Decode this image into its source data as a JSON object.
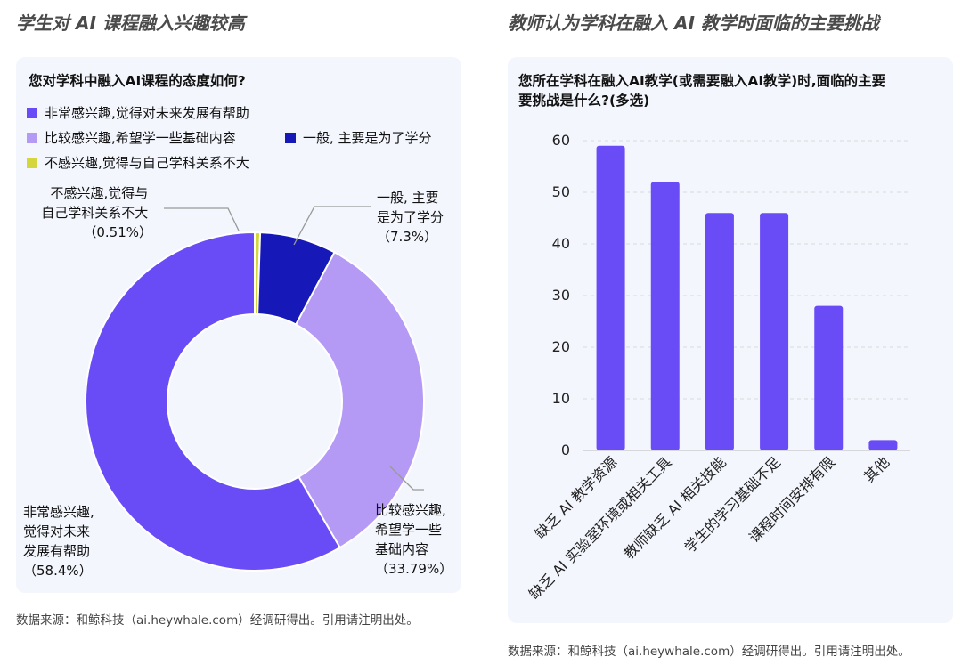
{
  "left": {
    "section_title": "学生对 AI 课程融入兴趣较高",
    "question": "您对学科中融入AI课程的态度如何?",
    "source": "数据来源：和鲸科技（ai.heywhale.com）经调研得出。引用请注明出处。"
  },
  "right": {
    "section_title": "教师认为学科在融入 AI 教学时面临的主要挑战",
    "question_line1": "您所在学科在融入AI教学(或需要融入AI教学)时,面临的主要",
    "question_line2": "要挑战是什么?(多选)",
    "source": "数据来源：和鲸科技（ai.heywhale.com）经调研得出。引用请注明出处。"
  },
  "chart_data": [
    {
      "type": "pie",
      "style": "donut",
      "title": "您对学科中融入AI课程的态度如何?",
      "legend_position": "top-left",
      "slices": [
        {
          "name": "不感兴趣,觉得与自己学科关系不大",
          "value": 0.51,
          "color": "#d4d63c",
          "label_lines": [
            "不感兴趣,觉得与",
            "自己学科关系不大",
            "（0.51%）"
          ]
        },
        {
          "name": "一般,主要是为了学分",
          "legend": "一般, 主要是为了学分",
          "value": 7.3,
          "color": "#1619b8",
          "label_lines": [
            "一般, 主要",
            "是为了学分",
            "（7.3%）"
          ]
        },
        {
          "name": "比较感兴趣,希望学一些基础内容",
          "value": 33.79,
          "color": "#b49af5",
          "label_lines": [
            "比较感兴趣,",
            "希望学一些",
            "基础内容",
            "（33.79%）"
          ]
        },
        {
          "name": "非常感兴趣,觉得对未来发展有帮助",
          "value": 58.4,
          "color": "#6a4cf6",
          "label_lines": [
            "非常感兴趣,",
            "觉得对未来",
            "发展有帮助",
            "（58.4%）"
          ]
        }
      ]
    },
    {
      "type": "bar",
      "title": "您所在学科在融入AI教学(或需要融入AI教学)时,面临的主要要挑战是什么?(多选)",
      "categories": [
        "缺乏 AI 教学资源",
        "缺乏 AI 实验室环境或相关工具",
        "教师缺乏 AI 相关技能",
        "学生的学习基础不足",
        "课程时间安排有限",
        "其他"
      ],
      "values": [
        59,
        52,
        46,
        46,
        28,
        2
      ],
      "yticks": [
        0,
        10,
        20,
        30,
        40,
        50,
        60
      ],
      "ylim": [
        0,
        60
      ],
      "grid": true,
      "bar_color": "#6a4cf6"
    }
  ]
}
